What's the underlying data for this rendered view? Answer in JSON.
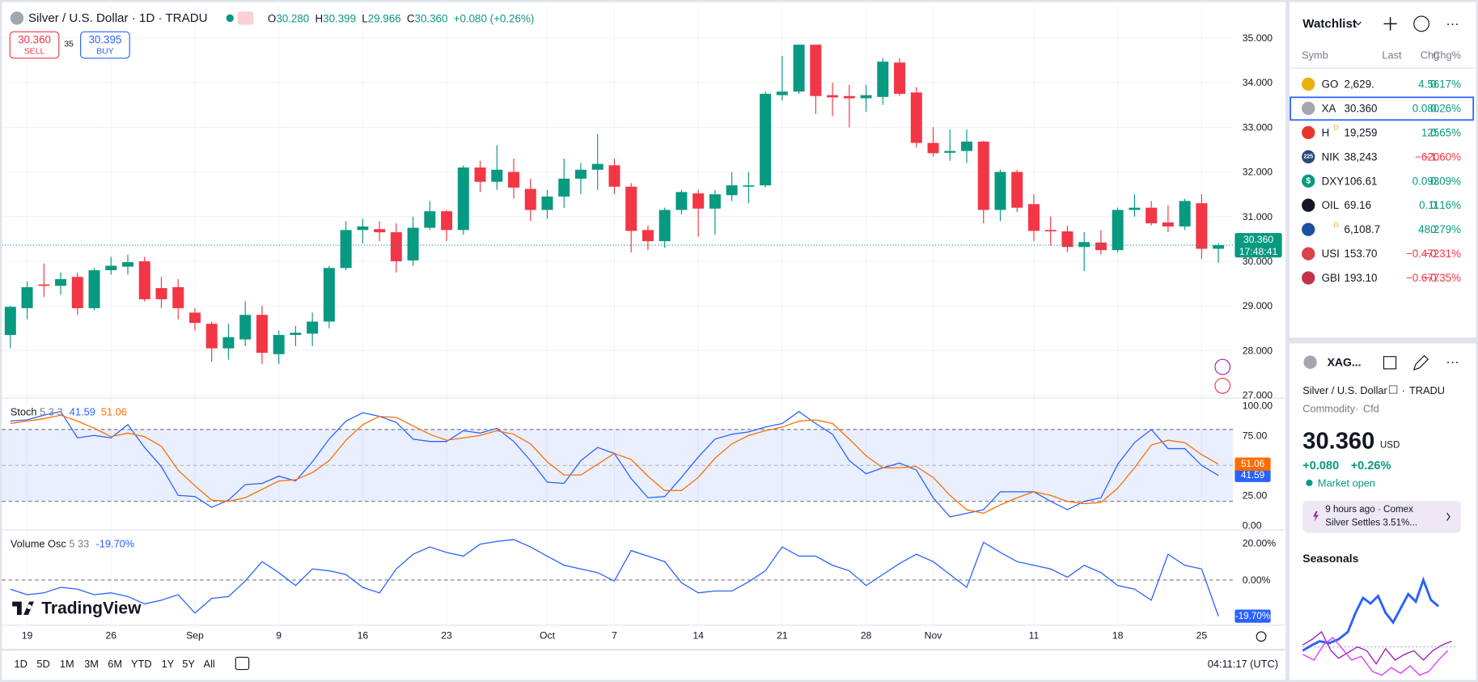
{
  "header": {
    "title": "Silver / U.S. Dollar · 1D · TRADU",
    "ohlc": [
      {
        "label": "O",
        "value": "30.280"
      },
      {
        "label": "H",
        "value": "30.399"
      },
      {
        "label": "L",
        "value": "29.966"
      },
      {
        "label": "C",
        "value": "30.360"
      }
    ],
    "change": "+0.080 (+0.26%)"
  },
  "order": {
    "sell_price": "30.360",
    "sell_label": "SELL",
    "spread": "35",
    "buy_price": "30.395",
    "buy_label": "BUY"
  },
  "branding": "TradingView",
  "chart_data": [
    {
      "type": "candlestick",
      "grid": true,
      "up_color": "#089981",
      "down_color": "#f23645",
      "categories": [
        null,
        "19",
        null,
        null,
        null,
        null,
        "26",
        null,
        null,
        null,
        null,
        "Sep",
        null,
        null,
        null,
        null,
        "9",
        null,
        null,
        null,
        null,
        "16",
        null,
        null,
        null,
        null,
        "23",
        null,
        null,
        null,
        null,
        null,
        "Oct",
        null,
        null,
        null,
        "7",
        null,
        null,
        null,
        null,
        "14",
        null,
        null,
        null,
        null,
        "21",
        null,
        null,
        null,
        null,
        "28",
        null,
        null,
        null,
        "Nov",
        null,
        null,
        null,
        null,
        null,
        "11",
        null,
        null,
        null,
        null,
        "18",
        null,
        null,
        null,
        null,
        "25",
        null
      ],
      "open": [
        28.35,
        28.95,
        29.48,
        29.45,
        29.65,
        28.95,
        29.8,
        29.88,
        30.0,
        29.4,
        29.42,
        28.85,
        28.6,
        28.05,
        28.25,
        28.8,
        27.92,
        28.35,
        28.38,
        28.65,
        29.85,
        30.7,
        30.72,
        30.65,
        30.02,
        30.75,
        31.12,
        30.7,
        32.1,
        31.78,
        32.0,
        31.62,
        31.15,
        31.45,
        31.85,
        32.05,
        32.15,
        31.67,
        30.7,
        30.45,
        31.15,
        31.52,
        31.18,
        31.48,
        31.67,
        31.7,
        33.72,
        33.8,
        34.85,
        33.72,
        33.7,
        33.65,
        33.68,
        34.45,
        33.78,
        32.65,
        32.43,
        32.47,
        32.68,
        31.15,
        32.0,
        31.28,
        30.7,
        30.67,
        30.32,
        30.42,
        30.25,
        31.15,
        31.2,
        30.87,
        30.78,
        31.3,
        30.28
      ],
      "high": [
        29.0,
        29.55,
        29.95,
        29.75,
        29.75,
        29.85,
        30.1,
        30.15,
        30.1,
        29.65,
        29.6,
        28.95,
        28.65,
        28.6,
        29.1,
        29.0,
        28.45,
        28.55,
        28.85,
        29.9,
        30.9,
        30.95,
        30.9,
        30.85,
        31.0,
        31.35,
        31.15,
        32.15,
        32.25,
        32.6,
        32.3,
        31.85,
        31.6,
        32.3,
        32.2,
        32.85,
        32.3,
        31.75,
        30.8,
        31.2,
        31.6,
        31.6,
        31.6,
        32.0,
        32.0,
        33.8,
        34.6,
        34.85,
        34.85,
        34.0,
        33.95,
        33.95,
        34.55,
        34.55,
        33.9,
        33.0,
        32.95,
        32.95,
        32.7,
        32.05,
        32.05,
        31.5,
        31.0,
        30.8,
        30.65,
        30.7,
        31.2,
        31.5,
        31.35,
        31.25,
        31.4,
        31.5,
        30.399
      ],
      "low": [
        28.05,
        28.7,
        29.2,
        29.25,
        28.8,
        28.9,
        29.7,
        29.7,
        29.1,
        28.95,
        28.7,
        28.45,
        27.75,
        27.8,
        28.1,
        27.7,
        27.7,
        28.1,
        28.1,
        28.5,
        29.8,
        30.4,
        30.45,
        29.75,
        29.9,
        30.7,
        30.45,
        30.6,
        31.55,
        31.6,
        31.4,
        30.9,
        30.95,
        31.2,
        31.5,
        31.6,
        31.5,
        30.2,
        30.25,
        30.3,
        31.05,
        30.55,
        30.6,
        31.35,
        31.3,
        31.65,
        33.6,
        33.75,
        33.3,
        33.25,
        33.0,
        33.35,
        33.5,
        33.7,
        32.55,
        32.35,
        32.25,
        32.2,
        30.85,
        30.9,
        31.1,
        30.45,
        30.35,
        30.2,
        29.78,
        30.15,
        30.2,
        31.0,
        30.8,
        30.65,
        30.7,
        30.05,
        29.966
      ],
      "close": [
        28.98,
        29.42,
        29.45,
        29.6,
        28.95,
        29.8,
        29.9,
        29.98,
        29.15,
        29.15,
        28.95,
        28.62,
        28.05,
        28.3,
        28.8,
        27.95,
        28.35,
        28.4,
        28.65,
        29.85,
        30.7,
        30.78,
        30.65,
        30.0,
        30.75,
        31.12,
        30.7,
        32.1,
        31.78,
        32.05,
        31.65,
        31.15,
        31.45,
        31.85,
        32.05,
        32.18,
        31.67,
        30.68,
        30.45,
        31.15,
        31.55,
        31.18,
        31.5,
        31.7,
        31.7,
        33.75,
        33.8,
        34.85,
        33.7,
        33.67,
        33.65,
        33.72,
        34.47,
        33.75,
        32.65,
        32.42,
        32.47,
        32.68,
        31.15,
        32.0,
        31.2,
        30.68,
        30.67,
        30.32,
        30.43,
        30.25,
        31.15,
        31.2,
        30.85,
        30.78,
        31.35,
        30.28,
        30.36
      ],
      "last_label": "30.360",
      "countdown": "17:48:41",
      "ylim": [
        26.98,
        35.74
      ],
      "yticks": [
        {
          "value": 27,
          "label": "27.000"
        },
        {
          "value": 28,
          "label": "28.000"
        },
        {
          "value": 29,
          "label": "29.000"
        },
        {
          "value": 30,
          "label": "30.000"
        },
        {
          "value": 31,
          "label": "31.000"
        },
        {
          "value": 32,
          "label": "32.000"
        },
        {
          "value": 33,
          "label": "33.000"
        },
        {
          "value": 34,
          "label": "34.000"
        },
        {
          "value": 35,
          "label": "35.000"
        }
      ]
    },
    {
      "type": "stoch",
      "title": "Stoch",
      "params": "5 3 3",
      "band": [
        20,
        80
      ],
      "midline": 50,
      "band_color": "#2962ff",
      "series": [
        {
          "color": "#2962ff",
          "values": [
            87,
            88,
            92,
            95,
            73,
            75,
            73,
            84,
            65,
            49,
            25,
            24,
            15,
            21,
            34,
            35,
            41,
            37,
            53,
            72,
            87,
            94,
            91,
            86,
            72,
            70,
            70,
            79,
            77,
            81,
            70,
            54,
            36,
            35,
            54,
            65,
            60,
            39,
            23,
            24,
            40,
            57,
            72,
            76,
            78,
            82,
            85,
            95,
            85,
            76,
            54,
            43,
            48,
            52,
            46,
            23,
            7,
            10,
            13,
            28,
            28,
            28,
            20,
            13,
            20,
            23,
            51,
            69,
            80,
            64,
            64,
            50,
            41.59
          ]
        },
        {
          "color": "#ff6d00",
          "values": [
            85,
            87,
            89,
            92,
            87,
            81,
            74,
            77,
            74,
            66,
            46,
            33,
            21,
            20,
            23,
            30,
            37,
            38,
            44,
            54,
            71,
            84,
            91,
            90,
            83,
            76,
            71,
            73,
            75,
            79,
            76,
            68,
            53,
            42,
            42,
            51,
            60,
            55,
            41,
            29,
            29,
            40,
            56,
            68,
            75,
            79,
            82,
            87,
            88,
            85,
            72,
            58,
            48,
            48,
            49,
            40,
            25,
            13,
            10,
            17,
            23,
            28,
            25,
            20,
            18,
            19,
            31,
            48,
            67,
            71,
            69,
            59,
            51.06
          ]
        }
      ],
      "ylim": [
        -3.15,
        104.7
      ],
      "yticks": [
        {
          "value": 0,
          "label": "0.00"
        },
        {
          "value": 25,
          "label": "25.00"
        },
        {
          "value": 75,
          "label": "75.00"
        },
        {
          "value": 100,
          "label": "100.00"
        }
      ]
    },
    {
      "type": "osc",
      "title": "Volume Osc",
      "params": "5 33",
      "midline": 0,
      "series": [
        {
          "color": "#2962ff",
          "values": [
            -5,
            -8,
            -7,
            -4,
            -5,
            -8,
            -7,
            -9,
            -13,
            -11,
            -8,
            -18,
            -10,
            -9,
            -0.5,
            10,
            4,
            -3,
            6,
            5,
            3,
            -4,
            -7,
            6,
            14,
            18,
            15,
            13,
            19.5,
            21,
            22,
            18,
            13,
            8,
            6,
            4,
            -0.5,
            16,
            13,
            10,
            -1.5,
            -7,
            -6,
            -6,
            -1,
            5,
            18,
            13,
            13,
            8,
            5,
            -3,
            3,
            9,
            14,
            10,
            3,
            -4,
            20.5,
            15,
            10,
            8,
            6,
            1.5,
            8,
            4,
            -3,
            -5,
            -11,
            14,
            8,
            6,
            -19.7
          ],
          "last_label": "-19.70%"
        }
      ],
      "ylim": [
        -24.1,
        26.7
      ],
      "yticks": [
        {
          "value": 0,
          "label": "0.00%"
        },
        {
          "value": 20,
          "label": "20.00%"
        }
      ]
    }
  ],
  "toolbar": {
    "timeframes": [
      "1D",
      "5D",
      "1M",
      "3M",
      "6M",
      "YTD",
      "1Y",
      "5Y",
      "All"
    ],
    "clock": "04:11:17 (UTC)"
  },
  "watchlist": {
    "title": "Watchlist",
    "columns": [
      "Symb",
      "Last",
      "Chg",
      "Chg%"
    ],
    "rows": [
      {
        "symbol": "GO",
        "last": "2,629.",
        "chg": "4.56",
        "pct": "0.17%",
        "color": "#089981",
        "icon_color": "#e8b10b"
      },
      {
        "symbol": "XA",
        "last": "30.360",
        "chg": "0.080",
        "pct": "0.26%",
        "color": "#089981",
        "icon_color": "#a3a6af",
        "selected": true
      },
      {
        "symbol": "H",
        "flag": "D",
        "last": "19,259",
        "chg": "125",
        "pct": "0.65%",
        "color": "#089981",
        "icon_color": "#e7372a"
      },
      {
        "symbol": "NIK",
        "icon_label": "225",
        "last": "38,243",
        "chg": "−620",
        "pct": "−1.60%",
        "color": "#f23645",
        "icon_color": "#2b4a82"
      },
      {
        "symbol": "DXY",
        "icon_label": "$",
        "last": "106.61",
        "chg": "0.093",
        "pct": "0.09%",
        "color": "#089981",
        "icon_color": "#089981"
      },
      {
        "symbol": "OIL",
        "last": "69.16",
        "chg": "0.11",
        "pct": "0.16%",
        "color": "#089981",
        "icon_color": "#131722"
      },
      {
        "flag": "D",
        "last": "6,108.7",
        "chg": "48.2",
        "pct": "0.79%",
        "color": "#089981",
        "icon_color": "#1e4fa0"
      },
      {
        "symbol": "USI",
        "last": "153.70",
        "chg": "−0.472",
        "pct": "−0.31%",
        "color": "#f23645",
        "icon_color": "#d8434b"
      },
      {
        "symbol": "GBI",
        "last": "193.10",
        "chg": "−0.677",
        "pct": "−0.35%",
        "color": "#f23645",
        "icon_color": "#c3324a"
      }
    ]
  },
  "details": {
    "symbol": "XAG...",
    "name": "Silver / U.S. Dollar",
    "exchange": "TRADU",
    "kind": "Commodity",
    "subkind": "Cfd",
    "price": "30.360",
    "currency": "USD",
    "change": "+0.080",
    "change_pct": "+0.26%",
    "status": "Market open",
    "news_time": "9 hours ago · Comex",
    "news_title": "Silver Settles 3.51%...",
    "seasonals": "Seasonals"
  }
}
